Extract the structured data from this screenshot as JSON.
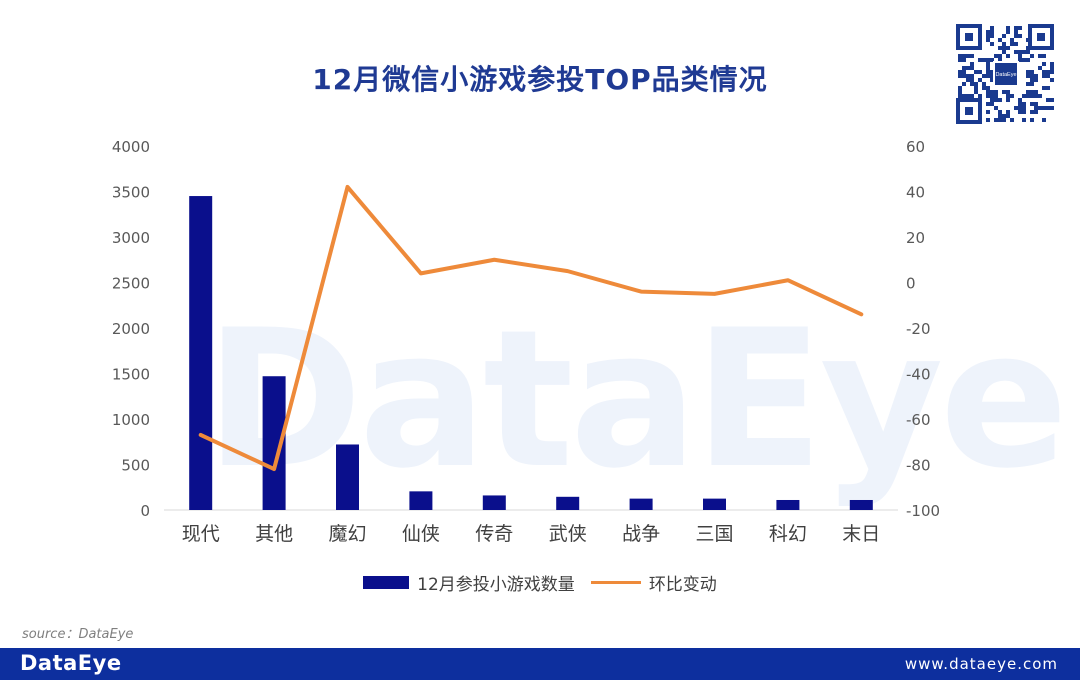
{
  "header": {
    "title": "12月微信小游戏参投TOP品类情况"
  },
  "branding": {
    "watermark": "DataEye",
    "footer_brand": "DataEye",
    "footer_url": "www.dataeye.com",
    "qr_badge": "DataEye"
  },
  "source": {
    "text": "source：DataEye"
  },
  "colors": {
    "bar": "#0a0f8c",
    "line": "#ee8a3a",
    "title": "#1f3a93",
    "footer": "#0d2f9e"
  },
  "chart_data": {
    "type": "bar",
    "categories": [
      "现代",
      "其他",
      "魔幻",
      "仙侠",
      "传奇",
      "武侠",
      "战争",
      "三国",
      "科幻",
      "末日"
    ],
    "series": [
      {
        "name": "12月参投小游戏数量",
        "type": "bar",
        "axis": "left",
        "values": [
          3450,
          1470,
          720,
          205,
          160,
          145,
          125,
          125,
          110,
          110
        ]
      },
      {
        "name": "环比变动",
        "type": "line",
        "axis": "right",
        "values": [
          -67,
          -82,
          42,
          4,
          10,
          5,
          -4,
          -5,
          1,
          -14
        ]
      }
    ],
    "y_left": {
      "min": 0,
      "max": 4000,
      "ticks": [
        0,
        500,
        1000,
        1500,
        2000,
        2500,
        3000,
        3500,
        4000
      ]
    },
    "y_right": {
      "min": -100,
      "max": 60,
      "ticks": [
        -100,
        -80,
        -60,
        -40,
        -20,
        0,
        20,
        40,
        60
      ]
    },
    "title": "12月微信小游戏参投TOP品类情况",
    "xlabel": "",
    "ylabel": "",
    "grid": false,
    "legend": "bottom"
  }
}
